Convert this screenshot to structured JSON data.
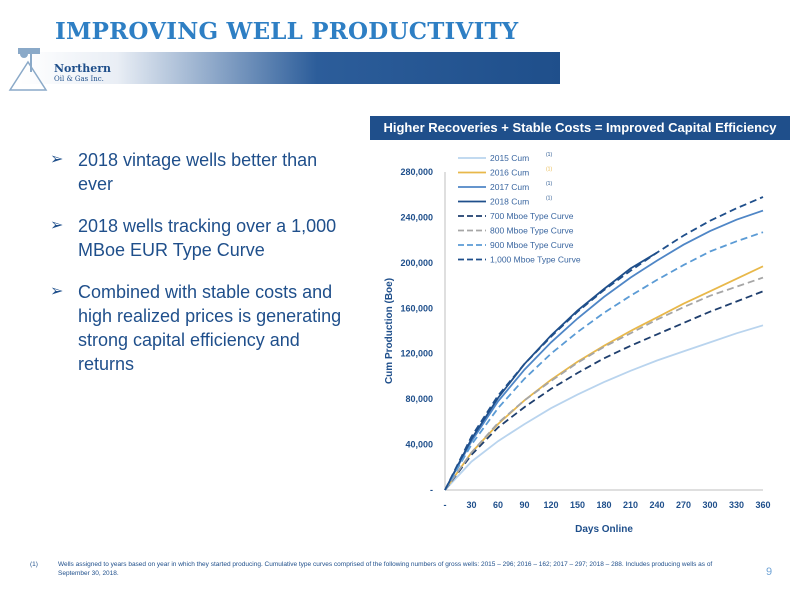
{
  "slide": {
    "title": "IMPROVING WELL PRODUCTIVITY",
    "logo_name": "Northern",
    "logo_sub": "Oil & Gas Inc.",
    "banner": "Higher Recoveries + Stable Costs = Improved Capital Efficiency",
    "bullet_marker": "➢",
    "bullets": [
      "2018 vintage wells better than ever",
      "2018 wells tracking over a 1,000 MBoe EUR Type Curve",
      "Combined with stable costs and high realized prices is generating strong capital efficiency and returns"
    ],
    "footnote_number": "(1)",
    "footnote": "Wells assigned to years based on year in which they started producing. Cumulative type curves comprised of the following numbers of gross wells: 2015 – 296; 2016 – 162; 2017 – 297; 2018 – 288. Includes producing wells as of September 30, 2018.",
    "page_number": "9"
  },
  "colors": {
    "navy": "#1f4f8b",
    "title_blue": "#2e7fc4",
    "c2015": "#b9d4ee",
    "c2016": "#e8b84a",
    "c2017": "#4f86c6",
    "c2018": "#1f4f8b",
    "c700": "#1f3f6e",
    "c800": "#a6a6a6",
    "c900": "#5b9bd5",
    "c1000": "#1f4f8b"
  },
  "chart_data": {
    "type": "line",
    "xlabel": "Days Online",
    "ylabel": "Cum Production (Boe)",
    "x_ticks": [
      "-",
      "30",
      "60",
      "90",
      "120",
      "150",
      "180",
      "210",
      "240",
      "270",
      "300",
      "330",
      "360"
    ],
    "y_ticks": [
      "-",
      "40,000",
      "80,000",
      "120,000",
      "160,000",
      "200,000",
      "240,000",
      "280,000"
    ],
    "xlim": [
      0,
      360
    ],
    "ylim": [
      0,
      280000
    ],
    "grid": false,
    "legend_position": "top-left",
    "series": [
      {
        "name": "2015 Cum",
        "note": "(1)",
        "style": "solid",
        "color_key": "c2015",
        "x": [
          0,
          30,
          60,
          90,
          120,
          150,
          180,
          210,
          240,
          270,
          300,
          330,
          360
        ],
        "y": [
          0,
          25000,
          43000,
          58000,
          72000,
          84000,
          95000,
          105000,
          114000,
          122000,
          130000,
          138000,
          145000
        ]
      },
      {
        "name": "2016 Cum",
        "note": "(1)",
        "style": "solid",
        "color_key": "c2016",
        "x": [
          0,
          30,
          60,
          90,
          120,
          150,
          180,
          210,
          240,
          270,
          300,
          330,
          360
        ],
        "y": [
          0,
          33000,
          58000,
          79000,
          97000,
          113000,
          127000,
          140000,
          152000,
          164000,
          175000,
          186000,
          197000
        ]
      },
      {
        "name": "2017 Cum",
        "note": "(1)",
        "style": "solid",
        "color_key": "c2017",
        "x": [
          0,
          30,
          60,
          90,
          120,
          150,
          180,
          210,
          240,
          270,
          300,
          330,
          360
        ],
        "y": [
          0,
          43000,
          78000,
          106000,
          130000,
          151000,
          170000,
          187000,
          202000,
          216000,
          228000,
          238000,
          246000
        ]
      },
      {
        "name": "2018 Cum",
        "note": "(1)",
        "style": "solid",
        "color_key": "c2018",
        "x": [
          0,
          30,
          60,
          90,
          120,
          150,
          180,
          210,
          240
        ],
        "y": [
          0,
          45000,
          81000,
          111000,
          136000,
          158000,
          177000,
          195000,
          209000
        ]
      },
      {
        "name": "700 Mboe Type Curve",
        "style": "dashed",
        "color_key": "c700",
        "x": [
          0,
          30,
          60,
          90,
          120,
          150,
          180,
          210,
          240,
          270,
          300,
          330,
          360
        ],
        "y": [
          0,
          31000,
          55000,
          73000,
          89000,
          103000,
          116000,
          127000,
          137000,
          147000,
          157000,
          166000,
          175000
        ]
      },
      {
        "name": "800 Mboe Type Curve",
        "style": "dashed",
        "color_key": "c800",
        "x": [
          0,
          30,
          60,
          90,
          120,
          150,
          180,
          210,
          240,
          270,
          300,
          330,
          360
        ],
        "y": [
          0,
          33000,
          59000,
          79000,
          96000,
          112000,
          126000,
          138000,
          150000,
          161000,
          171000,
          179000,
          187000
        ]
      },
      {
        "name": "900 Mboe Type Curve",
        "style": "dashed",
        "color_key": "c900",
        "x": [
          0,
          30,
          60,
          90,
          120,
          150,
          180,
          210,
          240,
          270,
          300,
          330,
          360
        ],
        "y": [
          0,
          40000,
          72000,
          98000,
          120000,
          139000,
          156000,
          171000,
          185000,
          198000,
          210000,
          219000,
          227000
        ]
      },
      {
        "name": "1,000 Mboe Type Curve",
        "style": "dashed",
        "color_key": "c1000",
        "x": [
          0,
          30,
          60,
          90,
          120,
          150,
          180,
          210,
          240,
          270,
          300,
          330,
          360
        ],
        "y": [
          0,
          47000,
          83000,
          111000,
          135000,
          157000,
          176000,
          193000,
          209000,
          224000,
          237000,
          248000,
          258000
        ]
      }
    ]
  }
}
